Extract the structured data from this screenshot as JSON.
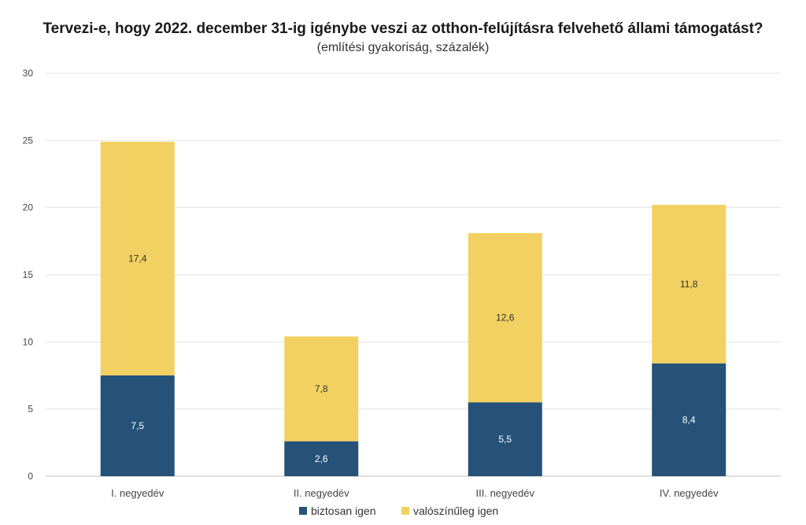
{
  "chart_data": {
    "type": "bar",
    "stacked": true,
    "title": "Tervezi-e, hogy 2022. december 31-ig igénybe veszi az otthon-felújításra felvehető állami támogatást?",
    "subtitle": "(említési gyakoriság, százalék)",
    "categories": [
      "I. negyedév",
      "II. negyedév",
      "III. negyedév",
      "IV. negyedév"
    ],
    "series": [
      {
        "name": "biztosan igen",
        "color": "#26527a",
        "values": [
          7.5,
          2.6,
          5.5,
          8.4
        ],
        "labels": [
          "7,5",
          "2,6",
          "5,5",
          "8,4"
        ]
      },
      {
        "name": "valószínűleg igen",
        "color": "#f2d162",
        "values": [
          17.4,
          7.8,
          12.6,
          11.8
        ],
        "labels": [
          "17,4",
          "7,8",
          "12,6",
          "11,8"
        ]
      }
    ],
    "ylim": [
      0,
      30
    ],
    "yticks": [
      0,
      5,
      10,
      15,
      20,
      25,
      30
    ],
    "grid": true,
    "legend": "bottom"
  }
}
